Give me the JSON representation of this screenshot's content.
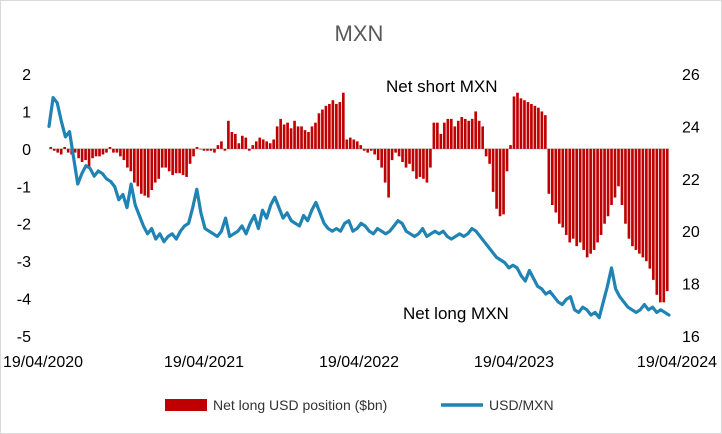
{
  "chart_data": {
    "type": "bar",
    "title": "MXN",
    "annotations": [
      "Net short MXN",
      "Net long MXN"
    ],
    "x_tick_labels": [
      "19/04/2020",
      "19/04/2021",
      "19/04/2022",
      "19/04/2023",
      "19/04/2024"
    ],
    "y_left": {
      "range": [
        -5,
        2
      ],
      "ticks": [
        "2",
        "1",
        "0",
        "-1",
        "-2",
        "-3",
        "-4",
        "-5"
      ]
    },
    "y_right": {
      "range": [
        16,
        26
      ],
      "ticks": [
        "26",
        "24",
        "22",
        "20",
        "18",
        "16"
      ]
    },
    "legend": {
      "placement": "bottom"
    },
    "colors": {
      "bars": "#c00000",
      "line": "#1f83b4"
    },
    "series": [
      {
        "name": "Net long USD position ($bn)",
        "type": "bar",
        "axis": "left",
        "values": [
          0.05,
          -0.05,
          -0.1,
          -0.15,
          0.05,
          -0.1,
          -0.15,
          -0.1,
          -0.25,
          -0.35,
          -0.3,
          -0.5,
          -0.25,
          -0.2,
          -0.2,
          -0.15,
          -0.1,
          0.05,
          -0.1,
          -0.1,
          -0.2,
          -0.3,
          -0.5,
          -0.6,
          -0.9,
          -1.0,
          -1.2,
          -1.25,
          -1.3,
          -1.1,
          -0.9,
          -0.8,
          -0.5,
          -0.5,
          -0.6,
          -0.7,
          -0.65,
          -0.65,
          -0.7,
          -0.75,
          -0.4,
          -0.2,
          0.05,
          0.0,
          -0.05,
          -0.05,
          -0.05,
          -0.1,
          0.1,
          0.2,
          -0.05,
          0.75,
          0.45,
          0.4,
          0.15,
          0.35,
          0.3,
          -0.05,
          0.1,
          0.2,
          0.3,
          0.25,
          0.2,
          0.15,
          0.25,
          0.6,
          0.8,
          0.65,
          0.7,
          0.55,
          0.75,
          0.6,
          0.6,
          0.5,
          0.45,
          0.6,
          0.7,
          0.95,
          1.05,
          1.15,
          1.2,
          1.3,
          1.2,
          1.25,
          1.5,
          0.25,
          0.3,
          0.25,
          0.2,
          0.1,
          -0.05,
          -0.1,
          -0.05,
          -0.15,
          -0.3,
          -0.5,
          -0.9,
          -1.3,
          -0.3,
          -0.1,
          -0.2,
          -0.35,
          -0.5,
          -0.4,
          -0.6,
          -0.8,
          -0.75,
          -0.8,
          -0.9,
          -0.5,
          0.7,
          0.7,
          0.4,
          0.7,
          0.8,
          0.8,
          0.6,
          0.75,
          0.85,
          0.8,
          0.75,
          0.8,
          1.0,
          0.75,
          0.6,
          -0.2,
          -0.4,
          -1.15,
          -1.6,
          -1.8,
          -1.75,
          -0.6,
          0.1,
          1.4,
          1.5,
          1.35,
          1.3,
          1.25,
          1.2,
          1.15,
          1.1,
          1.0,
          0.9,
          -1.2,
          -1.5,
          -1.7,
          -2.0,
          -2.1,
          -2.3,
          -2.5,
          -2.4,
          -2.6,
          -2.5,
          -2.7,
          -2.9,
          -2.8,
          -2.7,
          -2.5,
          -2.3,
          -2.0,
          -1.8,
          -1.5,
          -1.3,
          -1.0,
          -1.5,
          -2.0,
          -2.4,
          -2.6,
          -2.7,
          -2.8,
          -2.9,
          -3.0,
          -3.2,
          -3.5,
          -3.9,
          -4.1,
          -4.1,
          -3.8
        ]
      },
      {
        "name": "USD/MXN",
        "type": "line",
        "axis": "right",
        "values": [
          24.0,
          25.1,
          24.9,
          24.2,
          23.6,
          23.8,
          22.8,
          21.8,
          22.2,
          22.5,
          22.4,
          22.1,
          22.3,
          22.2,
          22.0,
          21.9,
          21.7,
          21.2,
          21.4,
          20.9,
          21.8,
          21.0,
          20.6,
          20.2,
          19.9,
          20.1,
          19.7,
          19.9,
          19.6,
          19.8,
          19.9,
          19.7,
          20.0,
          20.2,
          20.3,
          20.9,
          21.6,
          20.7,
          20.1,
          20.0,
          19.9,
          19.8,
          20.0,
          20.5,
          19.8,
          19.9,
          20.0,
          20.2,
          19.9,
          20.3,
          20.6,
          20.1,
          20.8,
          20.5,
          21.0,
          21.3,
          20.9,
          20.5,
          20.7,
          20.4,
          20.3,
          20.2,
          20.6,
          20.4,
          20.8,
          21.1,
          20.7,
          20.3,
          20.1,
          20.0,
          20.1,
          20.0,
          20.3,
          20.4,
          20.0,
          20.1,
          20.3,
          20.2,
          20.0,
          19.9,
          20.1,
          20.0,
          19.9,
          20.0,
          20.2,
          20.4,
          20.3,
          20.0,
          19.9,
          19.8,
          19.9,
          20.1,
          19.8,
          19.9,
          20.0,
          19.9,
          20.0,
          19.8,
          19.7,
          19.8,
          19.9,
          19.8,
          19.9,
          20.1,
          20.0,
          19.8,
          19.6,
          19.4,
          19.2,
          19.0,
          18.9,
          18.8,
          18.6,
          18.7,
          18.6,
          18.3,
          18.1,
          18.5,
          18.2,
          17.9,
          17.8,
          17.6,
          17.7,
          17.5,
          17.3,
          17.2,
          17.4,
          17.5,
          17.0,
          16.9,
          17.1,
          17.0,
          16.8,
          16.9,
          16.7,
          17.3,
          17.9,
          18.6,
          17.8,
          17.5,
          17.3,
          17.1,
          17.0,
          16.9,
          17.0,
          17.2,
          17.0,
          17.1,
          16.9,
          17.0,
          16.9,
          16.8
        ]
      }
    ]
  }
}
